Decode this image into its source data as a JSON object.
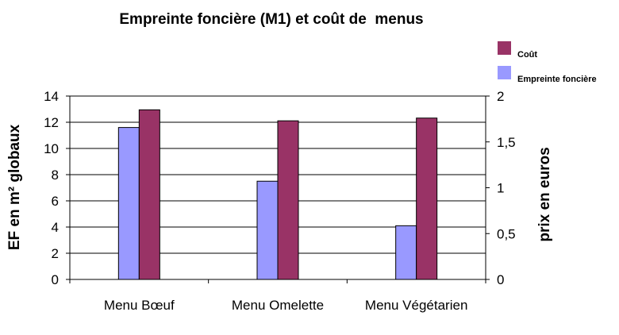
{
  "chart_data": {
    "type": "bar",
    "title": "Empreinte foncière (M1) et coût de  menus",
    "categories": [
      "Menu Bœuf",
      "Menu Omelette",
      "Menu Végétarien"
    ],
    "series": [
      {
        "name": "Empreinte foncière",
        "axis": "left",
        "color": "#9999ff",
        "values": [
          11.6,
          7.5,
          4.1
        ]
      },
      {
        "name": "Coût",
        "axis": "right",
        "color": "#993366",
        "values": [
          1.85,
          1.73,
          1.76
        ]
      }
    ],
    "ylabel": "EF en m² globaux",
    "ylim": [
      0,
      14
    ],
    "yticks": [
      "0",
      "2",
      "4",
      "6",
      "8",
      "10",
      "12",
      "14"
    ],
    "y2label": "prix en euros",
    "y2lim": [
      0,
      2
    ],
    "y2ticks": [
      "0",
      "0,5",
      "1",
      "1,5",
      "2"
    ],
    "legend": {
      "placement": "top-right",
      "entries": [
        {
          "label": "Coût",
          "color": "#993366"
        },
        {
          "label": "Empreinte foncière",
          "color": "#9999ff"
        }
      ]
    },
    "grid": true
  }
}
